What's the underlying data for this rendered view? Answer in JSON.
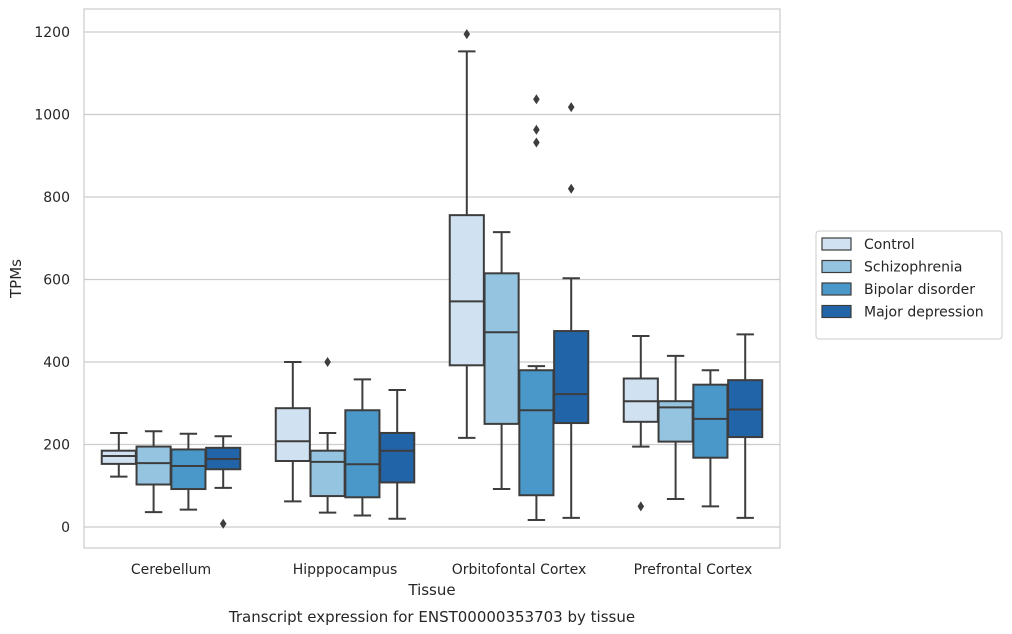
{
  "chart_data": {
    "type": "box",
    "title": "",
    "caption": "Transcript expression for ENST00000353703 by tissue",
    "xlabel": "Tissue",
    "ylabel": "TPMs",
    "ylim": [
      -50,
      1250
    ],
    "yticks": [
      0,
      200,
      400,
      600,
      800,
      1000,
      1200
    ],
    "grid": "horizontal",
    "legend_position": "right",
    "categories": [
      "Cerebellum",
      "Hipppocampus",
      "Orbitofontal Cortex",
      "Prefrontal Cortex"
    ],
    "series": [
      {
        "name": "Control",
        "color": "#d0e1f2",
        "boxes": [
          {
            "whislo": 122,
            "q1": 153,
            "med": 172,
            "q3": 185,
            "whishi": 228,
            "fliers": []
          },
          {
            "whislo": 62,
            "q1": 160,
            "med": 208,
            "q3": 288,
            "whishi": 400,
            "fliers": []
          },
          {
            "whislo": 216,
            "q1": 392,
            "med": 547,
            "q3": 756,
            "whishi": 1153,
            "fliers": [
              1195
            ]
          },
          {
            "whislo": 195,
            "q1": 255,
            "med": 305,
            "q3": 360,
            "whishi": 463,
            "fliers": [
              50
            ]
          }
        ]
      },
      {
        "name": "Schizophrenia",
        "color": "#94c4df",
        "boxes": [
          {
            "whislo": 36,
            "q1": 103,
            "med": 155,
            "q3": 195,
            "whishi": 232,
            "fliers": []
          },
          {
            "whislo": 35,
            "q1": 75,
            "med": 158,
            "q3": 185,
            "whishi": 228,
            "fliers": [
              400
            ]
          },
          {
            "whislo": 92,
            "q1": 250,
            "med": 472,
            "q3": 615,
            "whishi": 715,
            "fliers": []
          },
          {
            "whislo": 68,
            "q1": 207,
            "med": 290,
            "q3": 305,
            "whishi": 415,
            "fliers": []
          }
        ]
      },
      {
        "name": "Bipolar disorder",
        "color": "#4a98c9",
        "boxes": [
          {
            "whislo": 42,
            "q1": 92,
            "med": 148,
            "q3": 188,
            "whishi": 226,
            "fliers": []
          },
          {
            "whislo": 28,
            "q1": 72,
            "med": 152,
            "q3": 283,
            "whishi": 358,
            "fliers": []
          },
          {
            "whislo": 17,
            "q1": 77,
            "med": 283,
            "q3": 380,
            "whishi": 390,
            "fliers": [
              1037,
              963,
              932
            ]
          },
          {
            "whislo": 50,
            "q1": 168,
            "med": 262,
            "q3": 345,
            "whishi": 380,
            "fliers": []
          }
        ]
      },
      {
        "name": "Major depression",
        "color": "#2264a8",
        "boxes": [
          {
            "whislo": 95,
            "q1": 140,
            "med": 165,
            "q3": 192,
            "whishi": 220,
            "fliers": [
              8
            ]
          },
          {
            "whislo": 20,
            "q1": 108,
            "med": 185,
            "q3": 228,
            "whishi": 332,
            "fliers": []
          },
          {
            "whislo": 22,
            "q1": 252,
            "med": 322,
            "q3": 475,
            "whishi": 603,
            "fliers": [
              1018,
              820
            ]
          },
          {
            "whislo": 22,
            "q1": 218,
            "med": 285,
            "q3": 356,
            "whishi": 467,
            "fliers": []
          }
        ]
      }
    ]
  }
}
